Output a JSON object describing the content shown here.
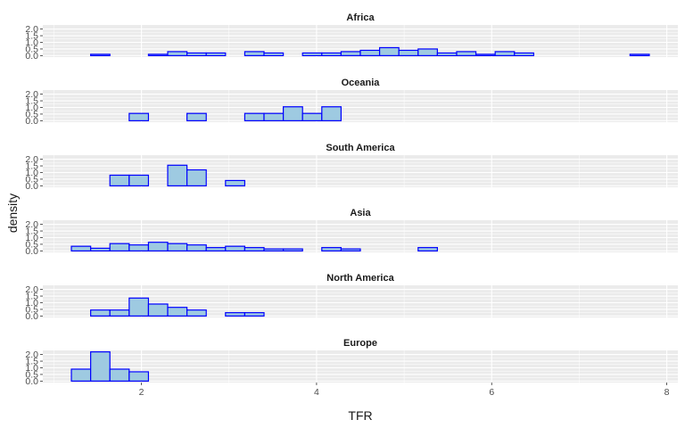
{
  "chart_data": {
    "type": "bar",
    "xlabel": "TFR",
    "ylabel": "density",
    "xlim": [
      1.2,
      7.8
    ],
    "ylim": [
      0,
      2.2
    ],
    "binwidth": 0.22,
    "x_ticks": [
      2,
      4,
      6,
      8
    ],
    "y_ticks": [
      0.0,
      0.5,
      1.0,
      1.5,
      2.0
    ],
    "grid": true,
    "colors": {
      "fill": "#9ecae1",
      "stroke": "#0000ff",
      "panel": "#ebebeb",
      "grid": "#ffffff"
    },
    "panels": [
      {
        "name": "Africa",
        "bins": [
          [
            1.2,
            0.0
          ],
          [
            1.42,
            0.1
          ],
          [
            1.64,
            0.0
          ],
          [
            1.86,
            0.0
          ],
          [
            2.08,
            0.1
          ],
          [
            2.3,
            0.3
          ],
          [
            2.52,
            0.2
          ],
          [
            2.74,
            0.2
          ],
          [
            2.96,
            0.0
          ],
          [
            3.18,
            0.3
          ],
          [
            3.4,
            0.2
          ],
          [
            3.62,
            0.0
          ],
          [
            3.84,
            0.2
          ],
          [
            4.06,
            0.2
          ],
          [
            4.28,
            0.3
          ],
          [
            4.5,
            0.4
          ],
          [
            4.72,
            0.6
          ],
          [
            4.94,
            0.4
          ],
          [
            5.16,
            0.5
          ],
          [
            5.38,
            0.2
          ],
          [
            5.6,
            0.3
          ],
          [
            5.82,
            0.1
          ],
          [
            6.04,
            0.3
          ],
          [
            6.26,
            0.2
          ],
          [
            6.48,
            0.0
          ],
          [
            6.7,
            0.0
          ],
          [
            6.92,
            0.0
          ],
          [
            7.14,
            0.0
          ],
          [
            7.36,
            0.0
          ],
          [
            7.58,
            0.1
          ]
        ]
      },
      {
        "name": "Oceania",
        "bins": [
          [
            1.2,
            0.0
          ],
          [
            1.42,
            0.0
          ],
          [
            1.64,
            0.0
          ],
          [
            1.86,
            0.55
          ],
          [
            2.08,
            0.0
          ],
          [
            2.3,
            0.0
          ],
          [
            2.52,
            0.55
          ],
          [
            2.74,
            0.0
          ],
          [
            2.96,
            0.0
          ],
          [
            3.18,
            0.55
          ],
          [
            3.4,
            0.55
          ],
          [
            3.62,
            1.05
          ],
          [
            3.84,
            0.55
          ],
          [
            4.06,
            1.05
          ],
          [
            4.28,
            0.0
          ],
          [
            4.5,
            0.0
          ],
          [
            4.72,
            0.0
          ],
          [
            4.94,
            0.0
          ],
          [
            5.16,
            0.0
          ],
          [
            5.38,
            0.0
          ],
          [
            5.6,
            0.0
          ],
          [
            5.82,
            0.0
          ],
          [
            6.04,
            0.0
          ],
          [
            6.26,
            0.0
          ],
          [
            6.48,
            0.0
          ],
          [
            6.7,
            0.0
          ],
          [
            6.92,
            0.0
          ],
          [
            7.14,
            0.0
          ],
          [
            7.36,
            0.0
          ],
          [
            7.58,
            0.0
          ]
        ]
      },
      {
        "name": "South America",
        "bins": [
          [
            1.2,
            0.0
          ],
          [
            1.42,
            0.0
          ],
          [
            1.64,
            0.8
          ],
          [
            1.86,
            0.8
          ],
          [
            2.08,
            0.0
          ],
          [
            2.3,
            1.55
          ],
          [
            2.52,
            1.2
          ],
          [
            2.74,
            0.0
          ],
          [
            2.96,
            0.4
          ],
          [
            3.18,
            0.0
          ],
          [
            3.4,
            0.0
          ],
          [
            3.62,
            0.0
          ],
          [
            3.84,
            0.0
          ],
          [
            4.06,
            0.0
          ],
          [
            4.28,
            0.0
          ],
          [
            4.5,
            0.0
          ],
          [
            4.72,
            0.0
          ],
          [
            4.94,
            0.0
          ],
          [
            5.16,
            0.0
          ],
          [
            5.38,
            0.0
          ],
          [
            5.6,
            0.0
          ],
          [
            5.82,
            0.0
          ],
          [
            6.04,
            0.0
          ],
          [
            6.26,
            0.0
          ],
          [
            6.48,
            0.0
          ],
          [
            6.7,
            0.0
          ],
          [
            6.92,
            0.0
          ],
          [
            7.14,
            0.0
          ],
          [
            7.36,
            0.0
          ],
          [
            7.58,
            0.0
          ]
        ]
      },
      {
        "name": "Asia",
        "bins": [
          [
            1.2,
            0.35
          ],
          [
            1.42,
            0.2
          ],
          [
            1.64,
            0.55
          ],
          [
            1.86,
            0.45
          ],
          [
            2.08,
            0.65
          ],
          [
            2.3,
            0.55
          ],
          [
            2.52,
            0.45
          ],
          [
            2.74,
            0.25
          ],
          [
            2.96,
            0.35
          ],
          [
            3.18,
            0.25
          ],
          [
            3.4,
            0.15
          ],
          [
            3.62,
            0.15
          ],
          [
            3.84,
            0.0
          ],
          [
            4.06,
            0.25
          ],
          [
            4.28,
            0.15
          ],
          [
            4.5,
            0.0
          ],
          [
            4.72,
            0.0
          ],
          [
            4.94,
            0.0
          ],
          [
            5.16,
            0.25
          ],
          [
            5.38,
            0.0
          ],
          [
            5.6,
            0.0
          ],
          [
            5.82,
            0.0
          ],
          [
            6.04,
            0.0
          ],
          [
            6.26,
            0.0
          ],
          [
            6.48,
            0.0
          ],
          [
            6.7,
            0.0
          ],
          [
            6.92,
            0.0
          ],
          [
            7.14,
            0.0
          ],
          [
            7.36,
            0.0
          ],
          [
            7.58,
            0.0
          ]
        ]
      },
      {
        "name": "North America",
        "bins": [
          [
            1.2,
            0.0
          ],
          [
            1.42,
            0.45
          ],
          [
            1.64,
            0.45
          ],
          [
            1.86,
            1.35
          ],
          [
            2.08,
            0.9
          ],
          [
            2.3,
            0.65
          ],
          [
            2.52,
            0.45
          ],
          [
            2.74,
            0.0
          ],
          [
            2.96,
            0.25
          ],
          [
            3.18,
            0.25
          ],
          [
            3.4,
            0.0
          ],
          [
            3.62,
            0.0
          ],
          [
            3.84,
            0.0
          ],
          [
            4.06,
            0.0
          ],
          [
            4.28,
            0.0
          ],
          [
            4.5,
            0.0
          ],
          [
            4.72,
            0.0
          ],
          [
            4.94,
            0.0
          ],
          [
            5.16,
            0.0
          ],
          [
            5.38,
            0.0
          ],
          [
            5.6,
            0.0
          ],
          [
            5.82,
            0.0
          ],
          [
            6.04,
            0.0
          ],
          [
            6.26,
            0.0
          ],
          [
            6.48,
            0.0
          ],
          [
            6.7,
            0.0
          ],
          [
            6.92,
            0.0
          ],
          [
            7.14,
            0.0
          ],
          [
            7.36,
            0.0
          ],
          [
            7.58,
            0.0
          ]
        ]
      },
      {
        "name": "Europe",
        "bins": [
          [
            1.2,
            0.9
          ],
          [
            1.42,
            2.2
          ],
          [
            1.64,
            0.9
          ],
          [
            1.86,
            0.7
          ],
          [
            2.08,
            0.0
          ],
          [
            2.3,
            0.0
          ],
          [
            2.52,
            0.0
          ],
          [
            2.74,
            0.0
          ],
          [
            2.96,
            0.0
          ],
          [
            3.18,
            0.0
          ],
          [
            3.4,
            0.0
          ],
          [
            3.62,
            0.0
          ],
          [
            3.84,
            0.0
          ],
          [
            4.06,
            0.0
          ],
          [
            4.28,
            0.0
          ],
          [
            4.5,
            0.0
          ],
          [
            4.72,
            0.0
          ],
          [
            4.94,
            0.0
          ],
          [
            5.16,
            0.0
          ],
          [
            5.38,
            0.0
          ],
          [
            5.6,
            0.0
          ],
          [
            5.82,
            0.0
          ],
          [
            6.04,
            0.0
          ],
          [
            6.26,
            0.0
          ],
          [
            6.48,
            0.0
          ],
          [
            6.7,
            0.0
          ],
          [
            6.92,
            0.0
          ],
          [
            7.14,
            0.0
          ],
          [
            7.36,
            0.0
          ],
          [
            7.58,
            0.0
          ]
        ]
      }
    ]
  }
}
